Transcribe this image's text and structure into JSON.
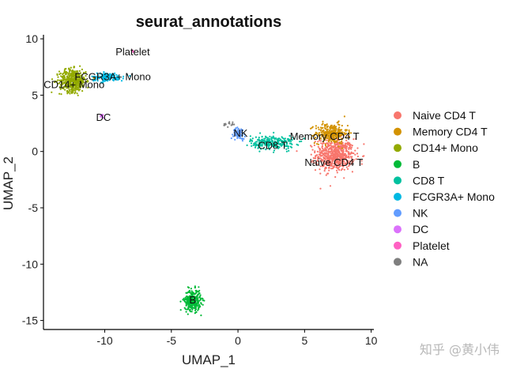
{
  "chart_data": {
    "type": "scatter",
    "title": "seurat_annotations",
    "xlabel": "UMAP_1",
    "ylabel": "UMAP_2",
    "xlim": [
      -14.6,
      10.2
    ],
    "ylim": [
      -15.8,
      10.5
    ],
    "x_ticks": [
      -10,
      -5,
      0,
      5,
      10
    ],
    "y_ticks": [
      10,
      5,
      0,
      -5,
      -10,
      -15
    ],
    "legend_position": "right",
    "series": [
      {
        "name": "Naive CD4 T",
        "color": "#F8766D"
      },
      {
        "name": "Memory CD4 T",
        "color": "#D39200"
      },
      {
        "name": "CD14+ Mono",
        "color": "#93AA00"
      },
      {
        "name": "B",
        "color": "#00BA38"
      },
      {
        "name": "CD8 T",
        "color": "#00C19F"
      },
      {
        "name": "FCGR3A+ Mono",
        "color": "#00B9E3"
      },
      {
        "name": "NK",
        "color": "#619CFF"
      },
      {
        "name": "DC",
        "color": "#DB72FB"
      },
      {
        "name": "Platelet",
        "color": "#FF61C3"
      },
      {
        "name": "NA",
        "color": "#7F7F7F"
      }
    ],
    "clusters": [
      {
        "name": "Naive CD4 T",
        "series": 0,
        "center": [
          7.3,
          -0.3
        ],
        "spread": [
          1.3,
          1.3
        ],
        "n": 650
      },
      {
        "name": "Memory CD4 T",
        "series": 1,
        "center": [
          7.0,
          1.6
        ],
        "spread": [
          1.1,
          0.8
        ],
        "n": 280
      },
      {
        "name": "CD14+ Mono",
        "series": 2,
        "center": [
          -12.4,
          6.3
        ],
        "spread": [
          0.9,
          0.9
        ],
        "n": 480
      },
      {
        "name": "B",
        "series": 3,
        "center": [
          -3.4,
          -13.2
        ],
        "spread": [
          0.55,
          0.85
        ],
        "n": 320
      },
      {
        "name": "CD8 T",
        "series": 4,
        "center": [
          2.6,
          0.8
        ],
        "spread": [
          1.5,
          0.55
        ],
        "n": 260
      },
      {
        "name": "FCGR3A+ Mono",
        "series": 5,
        "center": [
          -9.8,
          6.6
        ],
        "spread": [
          1.1,
          0.35
        ],
        "n": 140
      },
      {
        "name": "NK",
        "series": 6,
        "center": [
          0.1,
          1.6
        ],
        "spread": [
          0.4,
          0.45
        ],
        "n": 70
      },
      {
        "name": "DC",
        "series": 7,
        "center": [
          -10.2,
          3.2
        ],
        "spread": [
          0.2,
          0.2
        ],
        "n": 14
      },
      {
        "name": "Platelet",
        "series": 8,
        "center": [
          -7.9,
          8.9
        ],
        "spread": [
          0.1,
          0.1
        ],
        "n": 4
      },
      {
        "name": "NA",
        "series": 9,
        "center": [
          -0.7,
          2.4
        ],
        "spread": [
          0.35,
          0.3
        ],
        "n": 14
      }
    ],
    "annotations": [
      {
        "text": "Platelet",
        "x": -7.9,
        "y": 8.8
      },
      {
        "text": "FCGR3A+ Mono",
        "x": -9.4,
        "y": 6.6
      },
      {
        "text": "CD14+ Mono",
        "x": -12.3,
        "y": 5.9
      },
      {
        "text": "DC",
        "x": -10.1,
        "y": 3.0
      },
      {
        "text": "NK",
        "x": 0.2,
        "y": 1.6
      },
      {
        "text": "Memory CD4 T",
        "x": 6.5,
        "y": 1.3
      },
      {
        "text": "CD8 T",
        "x": 2.6,
        "y": 0.5
      },
      {
        "text": "Naive CD4 T",
        "x": 7.2,
        "y": -1.0
      },
      {
        "text": "B",
        "x": -3.4,
        "y": -13.2
      }
    ]
  },
  "watermark": "知乎 @黄小伟"
}
